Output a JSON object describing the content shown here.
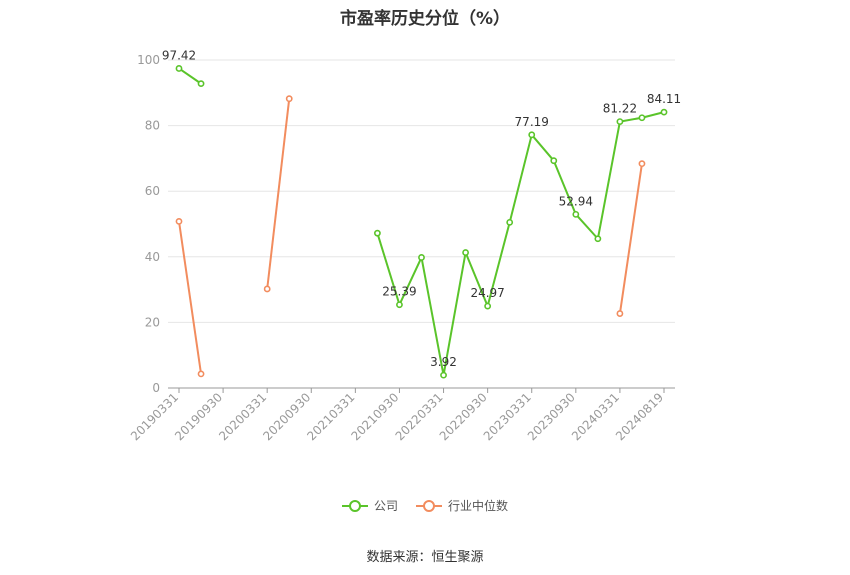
{
  "title": "市盈率历史分位（%）",
  "source_text": "数据来源：恒生聚源",
  "colors": {
    "company": "#5ac42a",
    "industry": "#f28c5e",
    "grid": "#e6e6e6",
    "axis": "#999999"
  },
  "legend": [
    {
      "label": "公司",
      "color": "#5ac42a"
    },
    {
      "label": "行业中位数",
      "color": "#f28c5e"
    }
  ],
  "chart_data": {
    "type": "line",
    "title": "市盈率历史分位（%）",
    "xlabel": "",
    "ylabel": "",
    "ylim": [
      0,
      100
    ],
    "yticks": [
      0,
      20,
      40,
      60,
      80,
      100
    ],
    "grid": true,
    "legend_position": "bottom",
    "categories": [
      "20190331",
      "20190630",
      "20190930",
      "20191231",
      "20200331",
      "20200630",
      "20200930",
      "20201231",
      "20210331",
      "20210630",
      "20210930",
      "20211231",
      "20220331",
      "20220630",
      "20220930",
      "20221231",
      "20230331",
      "20230630",
      "20230930",
      "20231231",
      "20240331",
      "20240630",
      "20240819"
    ],
    "x_tick_labels": [
      "20190331",
      "20190930",
      "20200331",
      "20200930",
      "20210331",
      "20210930",
      "20220331",
      "20220930",
      "20230331",
      "20230930",
      "20240331",
      "20240819"
    ],
    "series": [
      {
        "name": "公司",
        "values": [
          97.42,
          92.8,
          null,
          null,
          null,
          null,
          null,
          null,
          null,
          47.2,
          25.39,
          39.8,
          3.92,
          41.3,
          24.97,
          50.5,
          77.19,
          69.3,
          52.94,
          45.5,
          81.22,
          82.4,
          84.11
        ],
        "labels": {
          "0": "97.42",
          "10": "25.39",
          "12": "3.92",
          "14": "24.97",
          "16": "77.19",
          "18": "52.94",
          "20": "81.22",
          "22": "84.11"
        }
      },
      {
        "name": "行业中位数",
        "values": [
          50.8,
          4.3,
          null,
          null,
          30.2,
          88.2,
          null,
          null,
          null,
          null,
          null,
          null,
          null,
          null,
          null,
          null,
          null,
          null,
          null,
          null,
          22.7,
          68.4,
          null
        ],
        "labels": {}
      }
    ]
  }
}
